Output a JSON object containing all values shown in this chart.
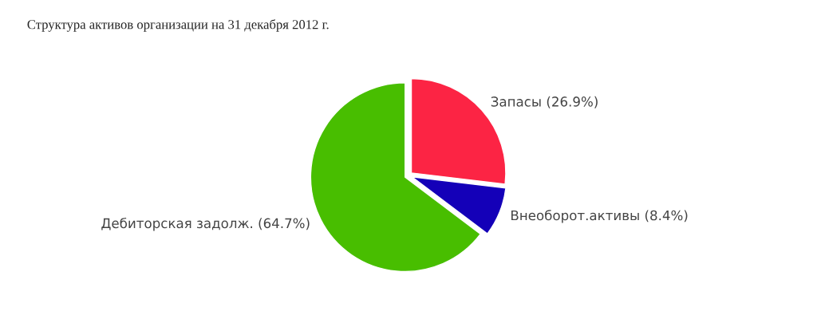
{
  "chart_data": {
    "type": "pie",
    "title": "Структура активов организации на 31 декабря 2012 г.",
    "categories": [
      "Запасы (26.9%)",
      "Внеоборот.активы (8.4%)",
      "Дебиторская задолж. (64.7%)"
    ],
    "values": [
      26.9,
      8.4,
      64.7
    ],
    "colors": [
      "#fc2444",
      "#1400b8",
      "#48be00"
    ]
  }
}
